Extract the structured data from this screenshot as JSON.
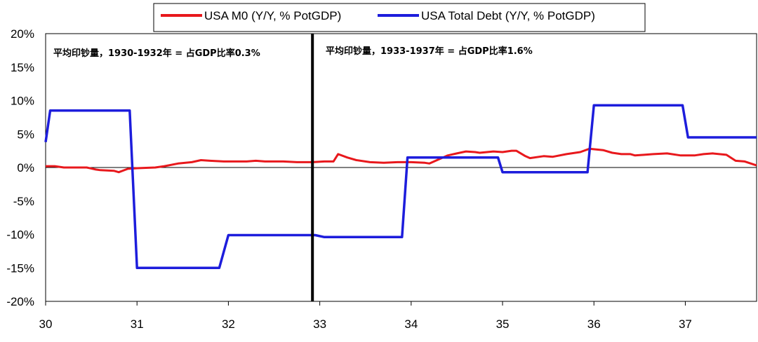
{
  "chart_data": {
    "type": "line",
    "xlabel": "",
    "ylabel": "",
    "x_ticks": [
      "30",
      "31",
      "32",
      "33",
      "34",
      "35",
      "36",
      "37"
    ],
    "y_ticks": [
      "20%",
      "15%",
      "10%",
      "5%",
      "0%",
      "-5%",
      "-10%",
      "-15%",
      "-20%"
    ],
    "xlim": [
      30,
      37.78
    ],
    "ylim": [
      -20,
      20
    ],
    "grid": false,
    "legend_position": "top-center",
    "series": [
      {
        "name": "USA M0 (Y/Y, % PotGDP)",
        "color": "#e8181c",
        "points": [
          [
            30,
            0.2
          ],
          [
            30.1,
            0.2
          ],
          [
            30.2,
            0.0
          ],
          [
            30.4,
            0.0
          ],
          [
            30.45,
            0.0
          ],
          [
            30.55,
            -0.3
          ],
          [
            30.6,
            -0.4
          ],
          [
            30.75,
            -0.5
          ],
          [
            30.8,
            -0.7
          ],
          [
            30.9,
            -0.2
          ],
          [
            31.0,
            -0.1
          ],
          [
            31.2,
            0.0
          ],
          [
            31.3,
            0.2
          ],
          [
            31.45,
            0.6
          ],
          [
            31.6,
            0.8
          ],
          [
            31.7,
            1.1
          ],
          [
            31.8,
            1.0
          ],
          [
            31.95,
            0.9
          ],
          [
            32.2,
            0.9
          ],
          [
            32.3,
            1.0
          ],
          [
            32.4,
            0.9
          ],
          [
            32.6,
            0.9
          ],
          [
            32.75,
            0.8
          ],
          [
            32.92,
            0.8
          ],
          [
            33.05,
            0.9
          ],
          [
            33.15,
            0.9
          ],
          [
            33.2,
            2.0
          ],
          [
            33.3,
            1.5
          ],
          [
            33.4,
            1.1
          ],
          [
            33.55,
            0.8
          ],
          [
            33.7,
            0.7
          ],
          [
            33.85,
            0.8
          ],
          [
            34.0,
            0.8
          ],
          [
            34.15,
            0.7
          ],
          [
            34.2,
            0.6
          ],
          [
            34.3,
            1.2
          ],
          [
            34.4,
            1.8
          ],
          [
            34.5,
            2.1
          ],
          [
            34.6,
            2.4
          ],
          [
            34.7,
            2.3
          ],
          [
            34.75,
            2.2
          ],
          [
            34.9,
            2.4
          ],
          [
            35.0,
            2.3
          ],
          [
            35.1,
            2.5
          ],
          [
            35.15,
            2.5
          ],
          [
            35.25,
            1.7
          ],
          [
            35.3,
            1.4
          ],
          [
            35.45,
            1.7
          ],
          [
            35.55,
            1.6
          ],
          [
            35.7,
            2.0
          ],
          [
            35.85,
            2.3
          ],
          [
            35.95,
            2.8
          ],
          [
            36.1,
            2.6
          ],
          [
            36.2,
            2.2
          ],
          [
            36.3,
            2.0
          ],
          [
            36.4,
            2.0
          ],
          [
            36.45,
            1.8
          ],
          [
            36.55,
            1.9
          ],
          [
            36.65,
            2.0
          ],
          [
            36.8,
            2.1
          ],
          [
            36.95,
            1.8
          ],
          [
            37.1,
            1.8
          ],
          [
            37.2,
            2.0
          ],
          [
            37.3,
            2.1
          ],
          [
            37.45,
            1.9
          ],
          [
            37.55,
            1.0
          ],
          [
            37.65,
            0.9
          ],
          [
            37.78,
            0.3
          ]
        ]
      },
      {
        "name": "USA Total Debt (Y/Y, % PotGDP)",
        "color": "#1d1ddc",
        "points": [
          [
            30,
            3.8
          ],
          [
            30.05,
            8.5
          ],
          [
            30.92,
            8.5
          ],
          [
            31.0,
            -15.0
          ],
          [
            31.9,
            -15.0
          ],
          [
            32.0,
            -10.1
          ],
          [
            32.95,
            -10.1
          ],
          [
            33.05,
            -10.4
          ],
          [
            33.9,
            -10.4
          ],
          [
            33.96,
            1.5
          ],
          [
            34.95,
            1.5
          ],
          [
            35.0,
            -0.7
          ],
          [
            35.93,
            -0.7
          ],
          [
            36.0,
            9.3
          ],
          [
            36.97,
            9.3
          ],
          [
            37.03,
            4.5
          ],
          [
            37.78,
            4.5
          ]
        ]
      }
    ],
    "vertical_marker": {
      "x": 32.92
    },
    "annotations": [
      {
        "id": "left",
        "text": "平均印钞量，1930-1932年 = 占GDP比率0.3%"
      },
      {
        "id": "right",
        "text": "平均印钞量，1933-1937年 = 占GDP比率1.6%"
      }
    ]
  }
}
